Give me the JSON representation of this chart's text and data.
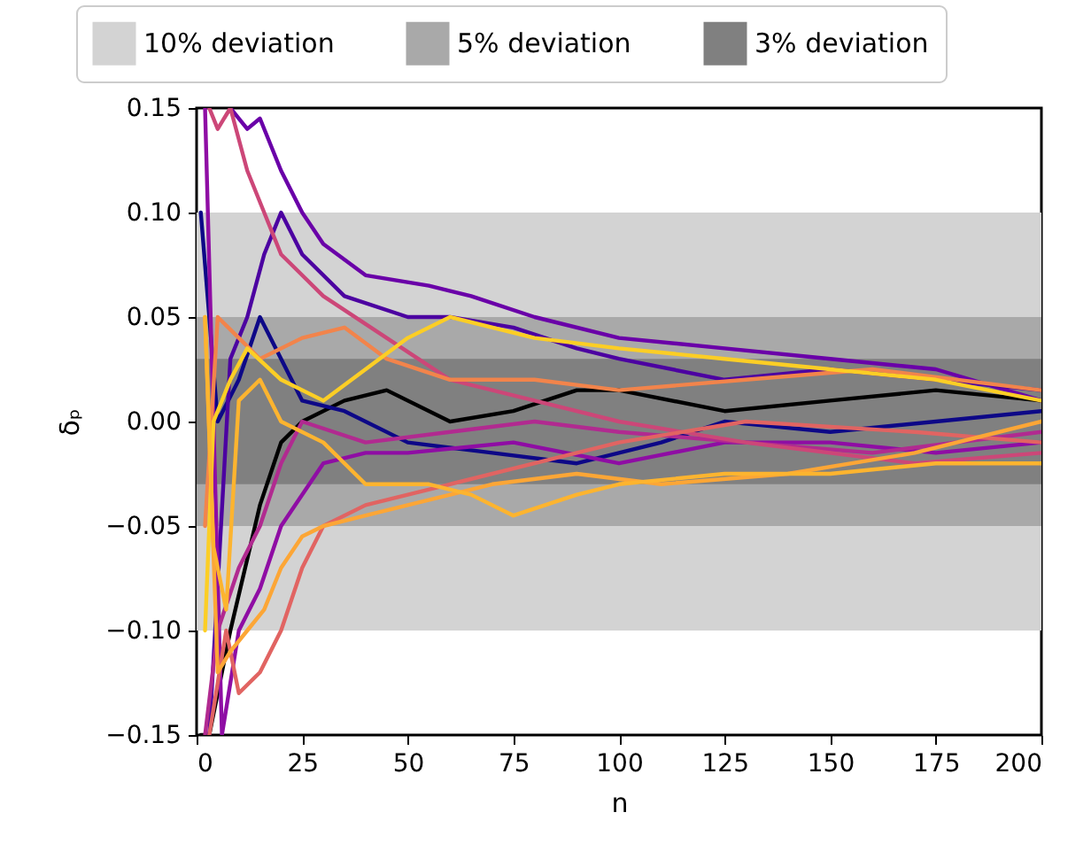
{
  "chart_data": {
    "type": "line",
    "xlabel": "n",
    "ylabel": "δₚ",
    "xlim": [
      0,
      200
    ],
    "xticks": [
      0,
      25,
      50,
      75,
      100,
      125,
      150,
      175,
      200
    ],
    "ylim": [
      -0.15,
      0.15
    ],
    "yticks": [
      {
        "value": -0.15,
        "label": "−0.15"
      },
      {
        "value": -0.1,
        "label": "−0.10"
      },
      {
        "value": -0.05,
        "label": "−0.05"
      },
      {
        "value": 0,
        "label": "0.00"
      },
      {
        "value": 0.05,
        "label": "0.05"
      },
      {
        "value": 0.1,
        "label": "0.10"
      },
      0.15
    ],
    "grid": false,
    "legend": "top",
    "bands": [
      {
        "axis": "y",
        "from": -0.1,
        "to": 0.1,
        "label": "10% deviation",
        "color": "#d3d3d3"
      },
      {
        "axis": "y",
        "from": -0.05,
        "to": 0.05,
        "label": "5% deviation",
        "color": "#a9a9a9"
      },
      {
        "axis": "y",
        "from": -0.03,
        "to": 0.03,
        "label": "3% deviation",
        "color": "#808080"
      }
    ],
    "series": [
      {
        "color": "#000000",
        "x": [
          1,
          3,
          8,
          15,
          20,
          25,
          35,
          45,
          60,
          75,
          90,
          100,
          125,
          150,
          175,
          200
        ],
        "values": [
          -0.15,
          -0.15,
          -0.1,
          -0.04,
          -0.01,
          0.0,
          0.01,
          0.015,
          0.0,
          0.005,
          0.015,
          0.015,
          0.005,
          0.01,
          0.015,
          0.01
        ]
      },
      {
        "color": "#0d0887",
        "x": [
          1,
          5,
          10,
          15,
          20,
          25,
          35,
          50,
          70,
          90,
          110,
          125,
          150,
          175,
          200
        ],
        "values": [
          0.1,
          0.0,
          0.02,
          0.05,
          0.03,
          0.01,
          0.005,
          -0.01,
          -0.015,
          -0.02,
          -0.01,
          0.0,
          -0.005,
          0.0,
          0.005
        ]
      },
      {
        "color": "#6a00a8",
        "x": [
          8,
          12,
          15,
          20,
          25,
          30,
          40,
          55,
          65,
          80,
          100,
          125,
          150,
          175,
          200
        ],
        "values": [
          0.15,
          0.14,
          0.145,
          0.12,
          0.1,
          0.085,
          0.07,
          0.065,
          0.06,
          0.05,
          0.04,
          0.035,
          0.03,
          0.025,
          0.01
        ]
      },
      {
        "color": "#4c02a1",
        "x": [
          3,
          8,
          12,
          16,
          20,
          25,
          35,
          50,
          60,
          75,
          90,
          100,
          125,
          150,
          175,
          200
        ],
        "values": [
          -0.15,
          0.03,
          0.05,
          0.08,
          0.1,
          0.08,
          0.06,
          0.05,
          0.05,
          0.045,
          0.035,
          0.03,
          0.02,
          0.025,
          0.02,
          0.015
        ]
      },
      {
        "color": "#8f0da4",
        "x": [
          2,
          6,
          10,
          15,
          20,
          30,
          40,
          50,
          75,
          100,
          125,
          150,
          175,
          200
        ],
        "values": [
          0.15,
          -0.15,
          -0.1,
          -0.08,
          -0.05,
          -0.02,
          -0.015,
          -0.015,
          -0.01,
          -0.02,
          -0.01,
          -0.01,
          -0.015,
          -0.01
        ]
      },
      {
        "color": "#b12a90",
        "x": [
          2,
          5,
          10,
          15,
          20,
          25,
          40,
          60,
          80,
          100,
          130,
          160,
          200
        ],
        "values": [
          -0.15,
          -0.1,
          -0.07,
          -0.05,
          -0.02,
          0.0,
          -0.01,
          -0.005,
          0.0,
          -0.005,
          -0.01,
          -0.015,
          -0.005
        ]
      },
      {
        "color": "#cc4778",
        "x": [
          3,
          5,
          8,
          12,
          16,
          20,
          25,
          30,
          45,
          60,
          80,
          100,
          130,
          170,
          200
        ],
        "values": [
          0.15,
          0.14,
          0.15,
          0.12,
          0.1,
          0.08,
          0.07,
          0.06,
          0.04,
          0.02,
          0.01,
          0.0,
          -0.01,
          -0.02,
          -0.015
        ]
      },
      {
        "color": "#e16462",
        "x": [
          3,
          7,
          10,
          15,
          20,
          25,
          30,
          40,
          60,
          80,
          100,
          130,
          170,
          200
        ],
        "values": [
          -0.15,
          -0.1,
          -0.13,
          -0.12,
          -0.1,
          -0.07,
          -0.05,
          -0.04,
          -0.03,
          -0.02,
          -0.01,
          0.0,
          -0.005,
          -0.01
        ]
      },
      {
        "color": "#f2844b",
        "x": [
          2,
          5,
          10,
          15,
          25,
          35,
          45,
          60,
          80,
          100,
          130,
          160,
          200
        ],
        "values": [
          -0.05,
          0.05,
          0.04,
          0.03,
          0.04,
          0.045,
          0.03,
          0.02,
          0.02,
          0.015,
          0.02,
          0.025,
          0.015
        ]
      },
      {
        "color": "#fca636",
        "x": [
          2,
          5,
          8,
          12,
          16,
          20,
          25,
          30,
          40,
          50,
          70,
          90,
          110,
          140,
          170,
          200
        ],
        "values": [
          0.05,
          -0.12,
          -0.11,
          -0.1,
          -0.09,
          -0.07,
          -0.055,
          -0.05,
          -0.045,
          -0.04,
          -0.03,
          -0.025,
          -0.03,
          -0.025,
          -0.015,
          0.0
        ]
      },
      {
        "color": "#fcce25",
        "x": [
          2,
          4,
          8,
          12,
          20,
          30,
          40,
          50,
          60,
          80,
          100,
          125,
          150,
          175,
          200
        ],
        "values": [
          -0.1,
          0.0,
          0.02,
          0.035,
          0.02,
          0.01,
          0.025,
          0.04,
          0.05,
          0.04,
          0.035,
          0.03,
          0.025,
          0.02,
          0.01
        ]
      },
      {
        "color": "#fdb42f",
        "x": [
          2,
          4,
          7,
          10,
          15,
          20,
          30,
          40,
          55,
          65,
          75,
          90,
          100,
          125,
          150,
          175,
          200
        ],
        "values": [
          0.05,
          -0.06,
          -0.09,
          0.01,
          0.02,
          0.0,
          -0.01,
          -0.03,
          -0.03,
          -0.035,
          -0.045,
          -0.035,
          -0.03,
          -0.025,
          -0.025,
          -0.02,
          -0.02
        ]
      }
    ]
  }
}
